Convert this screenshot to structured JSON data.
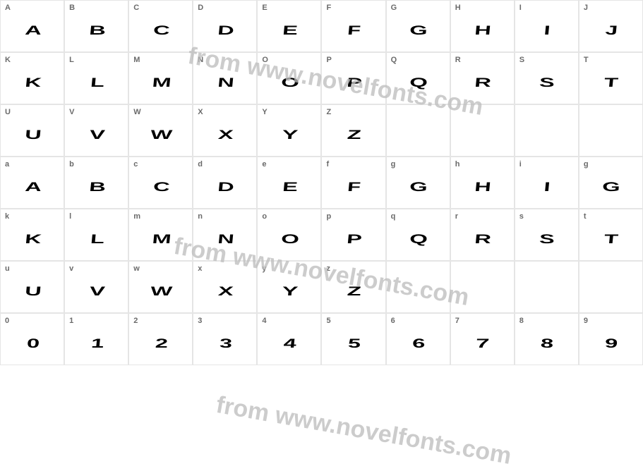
{
  "watermark_text": "from www.novelfonts.com",
  "watermark_color": "#bcbcbc",
  "grid_border_color": "#e5e5e5",
  "label_color": "#6a6a6a",
  "glyph_color": "#000000",
  "background_color": "#ffffff",
  "upper_row1": [
    {
      "label": "A",
      "glyph": "A"
    },
    {
      "label": "B",
      "glyph": "B"
    },
    {
      "label": "C",
      "glyph": "C"
    },
    {
      "label": "D",
      "glyph": "D"
    },
    {
      "label": "E",
      "glyph": "E"
    },
    {
      "label": "F",
      "glyph": "F"
    },
    {
      "label": "G",
      "glyph": "G"
    },
    {
      "label": "H",
      "glyph": "H"
    },
    {
      "label": "I",
      "glyph": "I"
    },
    {
      "label": "J",
      "glyph": "J"
    }
  ],
  "upper_row2": [
    {
      "label": "K",
      "glyph": "K"
    },
    {
      "label": "L",
      "glyph": "L"
    },
    {
      "label": "M",
      "glyph": "M"
    },
    {
      "label": "N",
      "glyph": "N"
    },
    {
      "label": "O",
      "glyph": "O"
    },
    {
      "label": "P",
      "glyph": "P"
    },
    {
      "label": "Q",
      "glyph": "Q"
    },
    {
      "label": "R",
      "glyph": "R"
    },
    {
      "label": "S",
      "glyph": "S"
    },
    {
      "label": "T",
      "glyph": "T"
    }
  ],
  "upper_row3": [
    {
      "label": "U",
      "glyph": "U"
    },
    {
      "label": "V",
      "glyph": "V"
    },
    {
      "label": "W",
      "glyph": "W"
    },
    {
      "label": "X",
      "glyph": "X"
    },
    {
      "label": "Y",
      "glyph": "Y"
    },
    {
      "label": "Z",
      "glyph": "Z"
    },
    {
      "label": "",
      "glyph": ""
    },
    {
      "label": "",
      "glyph": ""
    },
    {
      "label": "",
      "glyph": ""
    },
    {
      "label": "",
      "glyph": ""
    }
  ],
  "lower_row1": [
    {
      "label": "a",
      "glyph": "A"
    },
    {
      "label": "b",
      "glyph": "B"
    },
    {
      "label": "c",
      "glyph": "C"
    },
    {
      "label": "d",
      "glyph": "D"
    },
    {
      "label": "e",
      "glyph": "E"
    },
    {
      "label": "f",
      "glyph": "F"
    },
    {
      "label": "g",
      "glyph": "G"
    },
    {
      "label": "h",
      "glyph": "H"
    },
    {
      "label": "i",
      "glyph": "I"
    },
    {
      "label": "g",
      "glyph": "G"
    }
  ],
  "lower_row2": [
    {
      "label": "k",
      "glyph": "K"
    },
    {
      "label": "l",
      "glyph": "L"
    },
    {
      "label": "m",
      "glyph": "M"
    },
    {
      "label": "n",
      "glyph": "N"
    },
    {
      "label": "o",
      "glyph": "O"
    },
    {
      "label": "p",
      "glyph": "P"
    },
    {
      "label": "q",
      "glyph": "Q"
    },
    {
      "label": "r",
      "glyph": "R"
    },
    {
      "label": "s",
      "glyph": "S"
    },
    {
      "label": "t",
      "glyph": "T"
    }
  ],
  "lower_row3": [
    {
      "label": "u",
      "glyph": "U"
    },
    {
      "label": "v",
      "glyph": "V"
    },
    {
      "label": "w",
      "glyph": "W"
    },
    {
      "label": "x",
      "glyph": "X"
    },
    {
      "label": "y",
      "glyph": "Y"
    },
    {
      "label": "z",
      "glyph": "Z"
    },
    {
      "label": "",
      "glyph": ""
    },
    {
      "label": "",
      "glyph": ""
    },
    {
      "label": "",
      "glyph": ""
    },
    {
      "label": "",
      "glyph": ""
    }
  ],
  "digits_row": [
    {
      "label": "0",
      "glyph": "0"
    },
    {
      "label": "1",
      "glyph": "1"
    },
    {
      "label": "2",
      "glyph": "2"
    },
    {
      "label": "3",
      "glyph": "3"
    },
    {
      "label": "4",
      "glyph": "4"
    },
    {
      "label": "5",
      "glyph": "5"
    },
    {
      "label": "6",
      "glyph": "6"
    },
    {
      "label": "7",
      "glyph": "7"
    },
    {
      "label": "8",
      "glyph": "8"
    },
    {
      "label": "9",
      "glyph": "9"
    }
  ]
}
